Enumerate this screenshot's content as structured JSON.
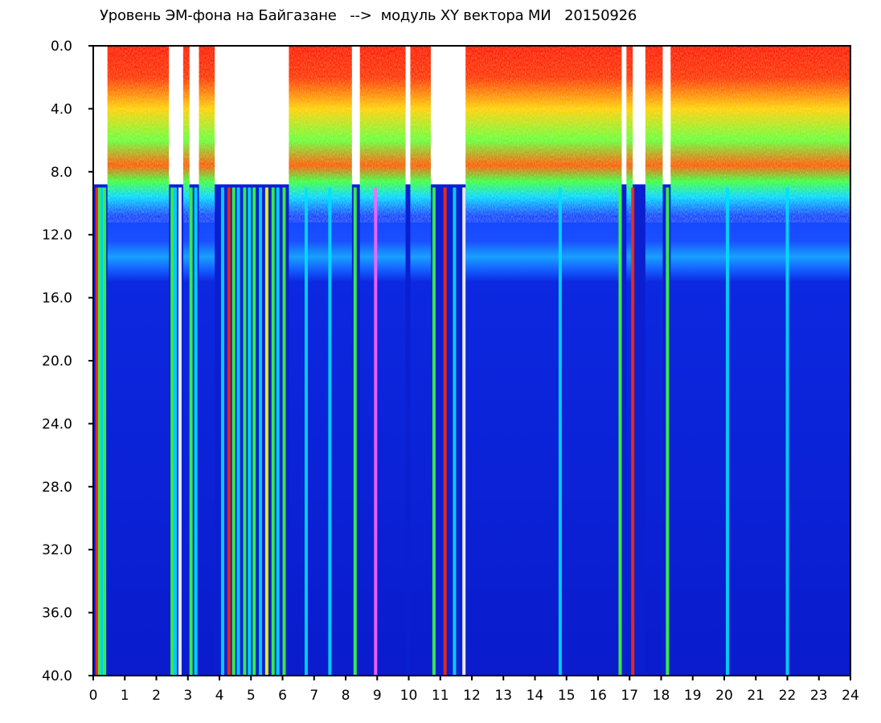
{
  "chart_data": {
    "type": "heatmap",
    "title": "Уровень ЭМ-фона на Байгазане   -->  модуль XY вектора МИ   20150926",
    "xlabel": "",
    "ylabel": "",
    "xlim": [
      0,
      24
    ],
    "ylim": [
      0,
      40
    ],
    "y_inverted": true,
    "x_ticks": [
      "0",
      "1",
      "2",
      "3",
      "4",
      "5",
      "6",
      "7",
      "8",
      "9",
      "10",
      "11",
      "12",
      "13",
      "14",
      "15",
      "16",
      "17",
      "18",
      "19",
      "20",
      "21",
      "22",
      "23",
      "24"
    ],
    "y_ticks": [
      "0.0",
      "4.0",
      "8.0",
      "12.0",
      "16.0",
      "20.0",
      "24.0",
      "28.0",
      "32.0",
      "36.0",
      "40.0"
    ],
    "grid": false,
    "colors": {
      "background_low": "#0a1fd0",
      "blue_high": "#1545ff",
      "cyan": "#00e0ff",
      "green": "#3cff3c",
      "yellow": "#ffff00",
      "red": "#ff1a00",
      "gap": "#ffffff"
    },
    "bands": [
      {
        "from": 0,
        "to": 8.5,
        "level": "high (red/yellow/green)"
      },
      {
        "from": 8.5,
        "to": 15,
        "level": "medium (blue/cyan)"
      },
      {
        "from": 15,
        "to": 40,
        "level": "low (dark blue)"
      }
    ],
    "gaps": [
      {
        "x_from": 0.0,
        "x_to": 0.45
      },
      {
        "x_from": 2.4,
        "x_to": 2.85
      },
      {
        "x_from": 3.05,
        "x_to": 3.35
      },
      {
        "x_from": 3.85,
        "x_to": 6.2
      },
      {
        "x_from": 8.2,
        "x_to": 8.45
      },
      {
        "x_from": 9.9,
        "x_to": 10.05
      },
      {
        "x_from": 10.7,
        "x_to": 11.8
      },
      {
        "x_from": 16.75,
        "x_to": 16.9
      },
      {
        "x_from": 17.1,
        "x_to": 17.5
      },
      {
        "x_from": 18.05,
        "x_to": 18.3
      }
    ],
    "vertical_lines": [
      {
        "x": 0.12,
        "color": "#ff2a00"
      },
      {
        "x": 0.2,
        "color": "#3cff3c"
      },
      {
        "x": 0.28,
        "color": "#00e0ff"
      },
      {
        "x": 0.36,
        "color": "#3cff3c"
      },
      {
        "x": 2.5,
        "color": "#3cff3c"
      },
      {
        "x": 2.6,
        "color": "#00e0ff"
      },
      {
        "x": 2.75,
        "color": "#ffffff"
      },
      {
        "x": 3.1,
        "color": "#3cff3c"
      },
      {
        "x": 3.25,
        "color": "#00e0ff"
      },
      {
        "x": 4.1,
        "color": "#00e0ff"
      },
      {
        "x": 4.3,
        "color": "#ff2a00"
      },
      {
        "x": 4.45,
        "color": "#3cff3c"
      },
      {
        "x": 4.6,
        "color": "#00e0ff"
      },
      {
        "x": 4.8,
        "color": "#3cff3c"
      },
      {
        "x": 4.95,
        "color": "#00e0ff"
      },
      {
        "x": 5.1,
        "color": "#3cff3c"
      },
      {
        "x": 5.3,
        "color": "#00e0ff"
      },
      {
        "x": 5.5,
        "color": "#ffff00"
      },
      {
        "x": 5.7,
        "color": "#3cff3c"
      },
      {
        "x": 5.85,
        "color": "#00e0ff"
      },
      {
        "x": 6.05,
        "color": "#3cff3c"
      },
      {
        "x": 6.75,
        "color": "#00e0ff"
      },
      {
        "x": 7.5,
        "color": "#00e0ff"
      },
      {
        "x": 8.3,
        "color": "#3cff3c"
      },
      {
        "x": 8.95,
        "color": "#ff66ff"
      },
      {
        "x": 10.8,
        "color": "#3cff3c"
      },
      {
        "x": 11.15,
        "color": "#ff2a00"
      },
      {
        "x": 11.45,
        "color": "#00e0ff"
      },
      {
        "x": 11.75,
        "color": "#ffffff"
      },
      {
        "x": 14.8,
        "color": "#00e0ff"
      },
      {
        "x": 16.7,
        "color": "#3cff3c"
      },
      {
        "x": 17.1,
        "color": "#ff2a00"
      },
      {
        "x": 18.2,
        "color": "#3cff3c"
      },
      {
        "x": 20.1,
        "color": "#00e0ff"
      },
      {
        "x": 22.0,
        "color": "#00e0ff"
      }
    ]
  }
}
